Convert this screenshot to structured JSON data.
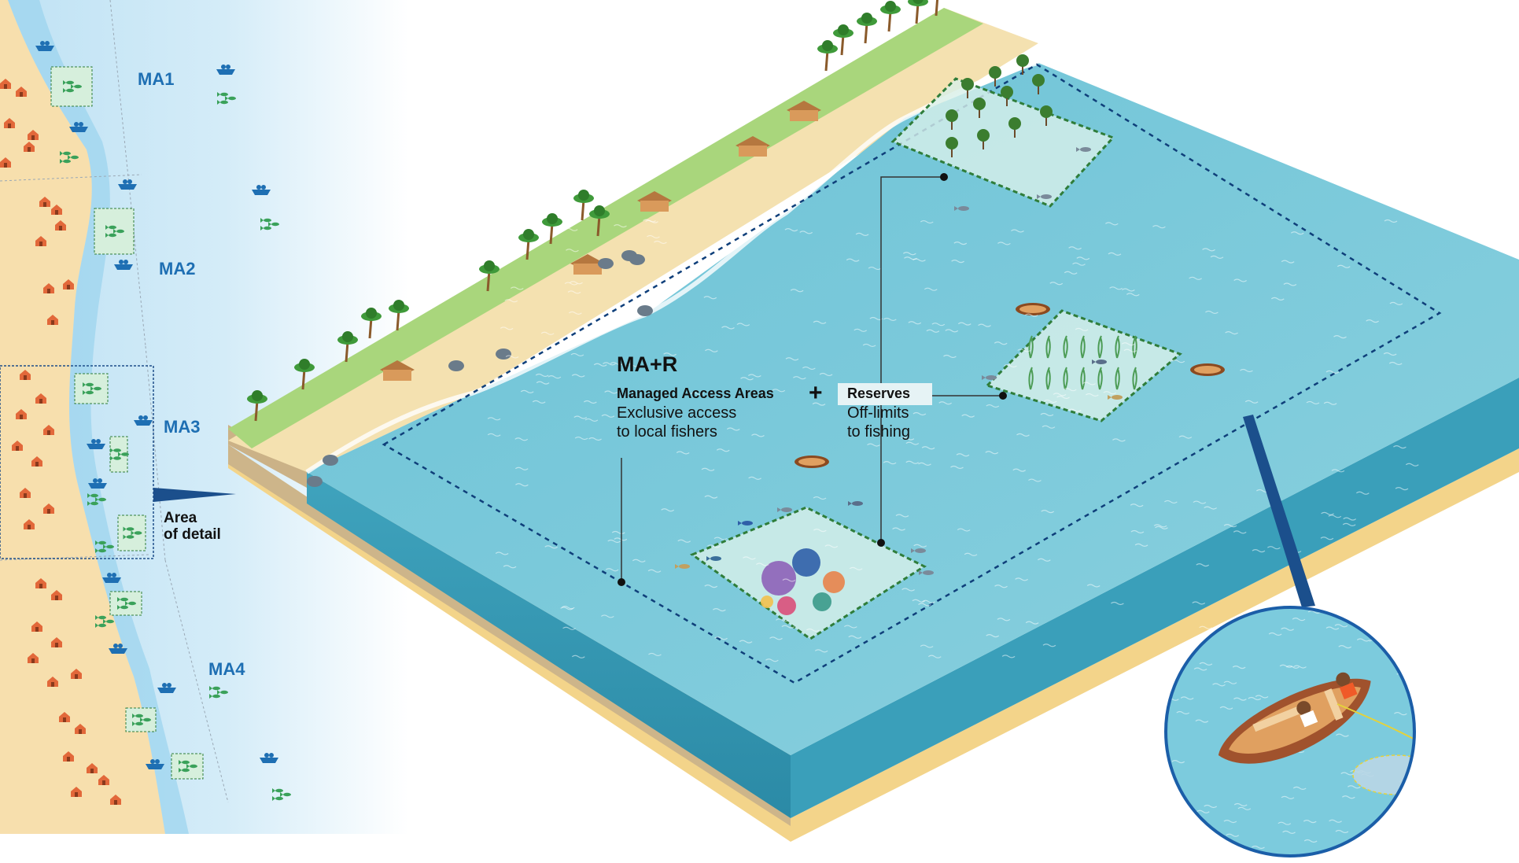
{
  "strip": {
    "labels": [
      "MA1",
      "MA2",
      "MA3",
      "MA4"
    ],
    "area_of_detail": "Area\nof detail"
  },
  "legend": {
    "title": "MA+R",
    "managed_heading": "Managed Access Areas",
    "managed_desc": "Exclusive access\nto local fishers",
    "plus": "+",
    "reserves_heading": "Reserves",
    "reserves_desc": "Off-limits\nto fishing"
  },
  "colors": {
    "sand": "#f7dfad",
    "water_light": "#8fd0df",
    "water_deep": "#4eb0c8",
    "strip_water": "#cfe8f6",
    "ma_label": "#1e6fb3",
    "reserve_border": "#2f7d3a",
    "hut": "#e2683a",
    "boat": "#1e6fb3",
    "fish": "#3aa15a"
  },
  "icons": [
    "hut-icon",
    "boat-icon",
    "fish-icon",
    "palm-tree-icon",
    "mangrove-icon",
    "coral-icon",
    "seagrass-icon",
    "fishing-net-icon"
  ]
}
